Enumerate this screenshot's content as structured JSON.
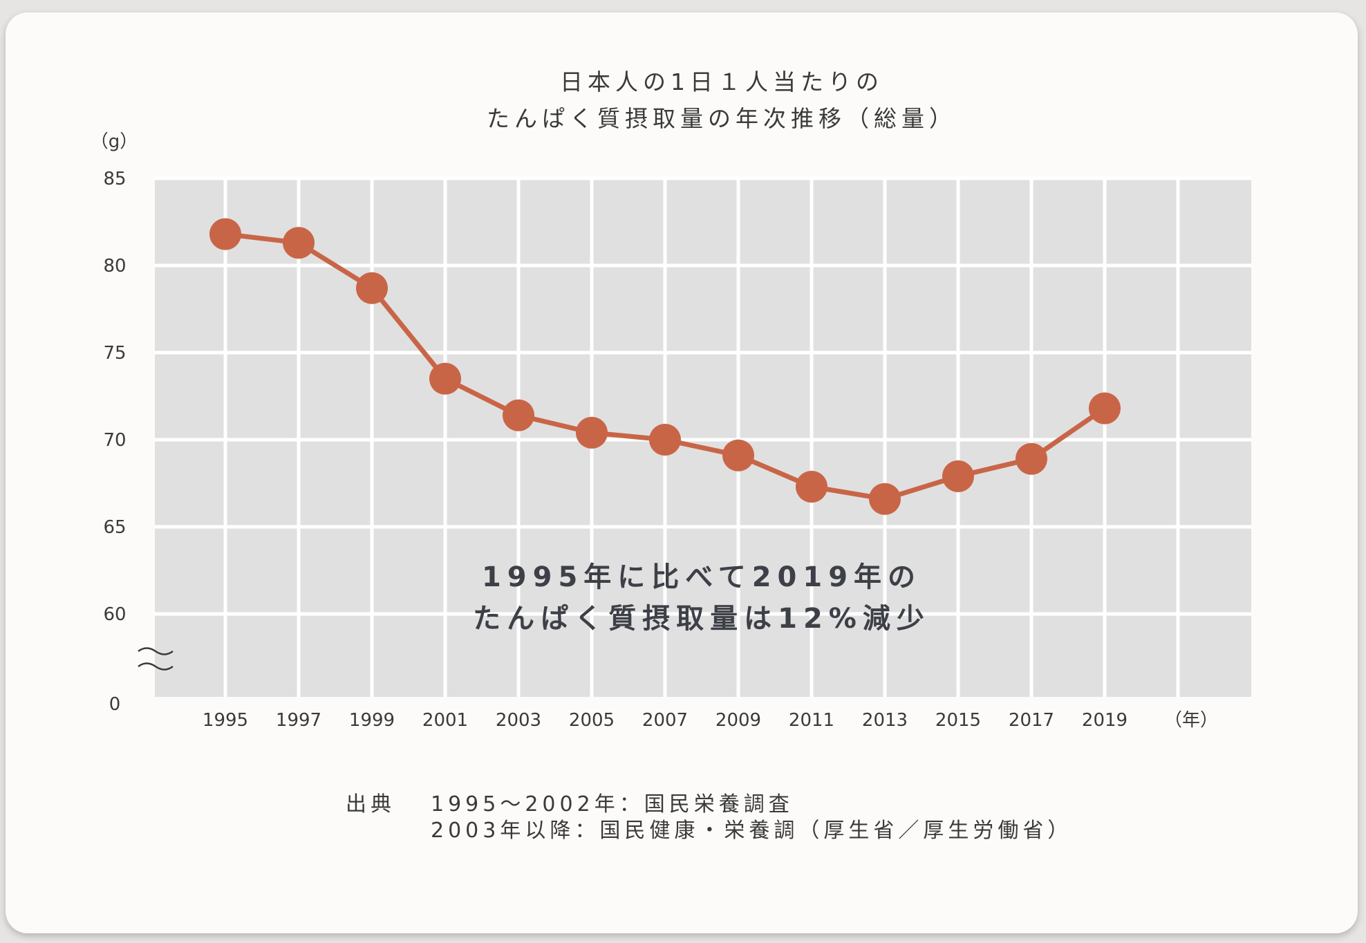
{
  "chart_data": {
    "type": "line",
    "title_lines": [
      "日本人の1日１人当たりの",
      "たんぱく質摂取量の年次推移（総量）"
    ],
    "y_unit_label": "（g）",
    "x_unit_label": "（年）",
    "y_ticks": [
      "85",
      "80",
      "75",
      "70",
      "65",
      "60",
      "0"
    ],
    "y_axis_break": true,
    "ylim": [
      60,
      85
    ],
    "grid": true,
    "categories": [
      "1995",
      "1997",
      "1999",
      "2001",
      "2003",
      "2005",
      "2007",
      "2009",
      "2011",
      "2013",
      "2015",
      "2017",
      "2019"
    ],
    "series": [
      {
        "values": [
          81.8,
          81.3,
          78.7,
          73.5,
          71.4,
          70.4,
          70.0,
          69.1,
          67.3,
          66.6,
          67.9,
          68.9,
          71.8
        ]
      }
    ],
    "annotation_lines": [
      "1995年に比べて2019年の",
      "たんぱく質摂取量は12%減少"
    ]
  },
  "source": {
    "label": "出典",
    "lines": [
      "1995～2002年：国民栄養調査",
      "2003年以降：国民健康・栄養調（厚生省／厚生労働省）"
    ]
  },
  "colors": {
    "line": "#c96547",
    "plot_bg": "#e0e0e0",
    "grid": "#ffffff",
    "card_bg": "#fcfbf9"
  }
}
